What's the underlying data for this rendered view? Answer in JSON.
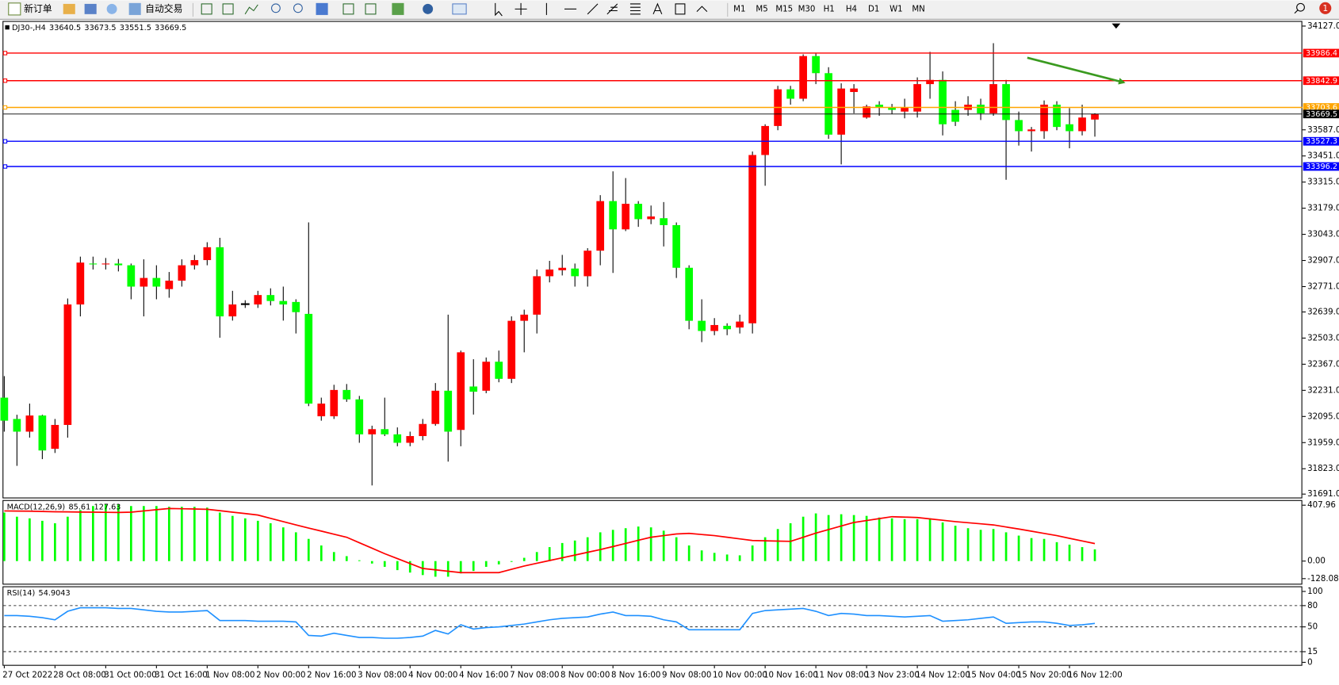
{
  "toolbar": {
    "new_order": "新订单",
    "auto_trading": "自动交易",
    "timeframes": [
      "M1",
      "M5",
      "M15",
      "M30",
      "H1",
      "H4",
      "D1",
      "W1",
      "MN"
    ],
    "badge": "1"
  },
  "chart_data": [
    {
      "type": "candlestick",
      "title": "DJ30-,H4",
      "up_color": "#ff0000",
      "down_color": "#00ff00",
      "wick_color": "#000000",
      "categories": [
        "27 Oct 2022",
        null,
        null,
        null,
        "28 Oct 08:00",
        null,
        null,
        null,
        "31 Oct 00:00",
        null,
        null,
        null,
        "31 Oct 16:00",
        null,
        null,
        null,
        "1 Nov 08:00",
        null,
        null,
        null,
        "2 Nov 00:00",
        null,
        null,
        null,
        "2 Nov 16:00",
        null,
        null,
        null,
        "3 Nov 08:00",
        null,
        null,
        null,
        "4 Nov 00:00",
        null,
        null,
        null,
        "4 Nov 16:00",
        null,
        null,
        null,
        "7 Nov 08:00",
        null,
        null,
        null,
        "8 Nov 00:00",
        null,
        null,
        null,
        "8 Nov 16:00",
        null,
        null,
        null,
        "9 Nov 08:00",
        null,
        null,
        null,
        "10 Nov 00:00",
        null,
        null,
        null,
        "10 Nov 16:00",
        null,
        null,
        null,
        "11 Nov 08:00",
        null,
        null,
        null,
        "13 Nov 23:00",
        null,
        null,
        null,
        "14 Nov 12:00",
        null,
        null,
        null,
        "15 Nov 04:00",
        null,
        null,
        null,
        "15 Nov 20:00",
        null,
        null,
        null,
        "16 Nov 12:00",
        null,
        null
      ],
      "open": [
        32193,
        32082,
        32016,
        32100,
        31927,
        32051,
        32678,
        32891,
        32887,
        32891,
        32882,
        32771,
        32816,
        32758,
        32802,
        32882,
        32909,
        32976,
        32616,
        32682,
        32678,
        32727,
        32696,
        32691,
        32629,
        32096,
        32096,
        32233,
        32184,
        32002,
        32029,
        32002,
        31958,
        31993,
        32056,
        32229,
        32025,
        32251,
        32229,
        32380,
        32291,
        32593,
        32625,
        32825,
        32856,
        32865,
        32825,
        32958,
        33216,
        33069,
        33202,
        33122,
        33127,
        33091,
        32869,
        32593,
        32540,
        32567,
        32558,
        32580,
        33456,
        33607,
        33798,
        33749,
        33971,
        33882,
        33562,
        33784,
        33651,
        33718,
        33705,
        33682,
        33682,
        33825,
        33847,
        33691,
        33691,
        33718,
        33673,
        33825,
        33638,
        33580,
        33580,
        33718,
        33616,
        33580,
        33640.5
      ],
      "high": [
        32305,
        32104,
        32162,
        32104,
        32082,
        32709,
        32927,
        32927,
        32920,
        32915,
        32891,
        32913,
        32882,
        32847,
        32913,
        32936,
        33002,
        33025,
        32749,
        32700,
        32749,
        32762,
        32771,
        32705,
        33105,
        32193,
        32260,
        32264,
        32202,
        32047,
        32193,
        32038,
        32016,
        32082,
        32269,
        32625,
        32438,
        32393,
        32402,
        32438,
        32616,
        32651,
        32860,
        32905,
        32936,
        32891,
        32971,
        33247,
        33371,
        33336,
        33216,
        33193,
        33211,
        33105,
        32882,
        32705,
        32607,
        32580,
        32625,
        33474,
        33616,
        33816,
        33816,
        33980,
        33984,
        33913,
        33829,
        33825,
        33718,
        33736,
        33722,
        33749,
        33860,
        33993,
        33891,
        33736,
        33762,
        33749,
        34038,
        33847,
        33682,
        33602,
        33740,
        33736,
        33700,
        33718,
        33673.5
      ],
      "low": [
        32016,
        31838,
        31985,
        31873,
        31905,
        31985,
        32616,
        32860,
        32860,
        32850,
        32705,
        32616,
        32705,
        32713,
        32771,
        32860,
        32882,
        32505,
        32594,
        32660,
        32660,
        32673,
        32594,
        32527,
        32149,
        32073,
        32082,
        32171,
        31958,
        31736,
        31993,
        31940,
        31940,
        31971,
        32047,
        31860,
        31940,
        32105,
        32216,
        32273,
        32269,
        32429,
        32527,
        32793,
        32829,
        32771,
        32771,
        32882,
        32842,
        33060,
        33082,
        33096,
        32980,
        32816,
        32549,
        32482,
        32518,
        32518,
        32527,
        32527,
        33296,
        33585,
        33718,
        33736,
        33825,
        33540,
        33407,
        33673,
        33645,
        33660,
        33669,
        33647,
        33651,
        33749,
        33558,
        33607,
        33660,
        33638,
        33660,
        33327,
        33505,
        33474,
        33540,
        33585,
        33491,
        33558,
        33551.5
      ],
      "close": [
        32073,
        32016,
        32100,
        31918,
        32051,
        32678,
        32896,
        32887,
        32891,
        32882,
        32771,
        32816,
        32771,
        32802,
        32882,
        32909,
        32976,
        32616,
        32678,
        32682,
        32727,
        32696,
        32678,
        32638,
        32162,
        32162,
        32233,
        32184,
        32002,
        32029,
        32002,
        31958,
        31993,
        32056,
        32229,
        32016,
        32429,
        32224,
        32380,
        32291,
        32593,
        32625,
        32825,
        32860,
        32869,
        32825,
        32958,
        33216,
        33069,
        33202,
        33122,
        33136,
        33091,
        32869,
        32593,
        32540,
        32571,
        32549,
        32589,
        33456,
        33607,
        33798,
        33749,
        33971,
        33882,
        33562,
        33802,
        33802,
        33709,
        33705,
        33691,
        33705,
        33825,
        33847,
        33616,
        33629,
        33718,
        33673,
        33825,
        33638,
        33580,
        33589,
        33718,
        33602,
        33580,
        33651,
        33669.5
      ],
      "ylim": [
        31691,
        34127
      ],
      "yticks": [
        {
          "value": 34127,
          "label": "34127.0"
        },
        {
          "value": 33587,
          "label": "33587.0"
        },
        {
          "value": 33451,
          "label": "33451.0"
        },
        {
          "value": 33315,
          "label": "33315.0"
        },
        {
          "value": 33179,
          "label": "33179.0"
        },
        {
          "value": 33043,
          "label": "33043.0"
        },
        {
          "value": 32907,
          "label": "32907.0"
        },
        {
          "value": 32771,
          "label": "32771.0"
        },
        {
          "value": 32639,
          "label": "32639.0"
        },
        {
          "value": 32503,
          "label": "32503.0"
        },
        {
          "value": 32367,
          "label": "32367.0"
        },
        {
          "value": 32231,
          "label": "32231.0"
        },
        {
          "value": 32095,
          "label": "32095.0"
        },
        {
          "value": 31959,
          "label": "31959.0"
        },
        {
          "value": 31823,
          "label": "31823.0"
        },
        {
          "value": 31691,
          "label": "31691.0"
        }
      ],
      "levels": [
        {
          "value": 33986.4,
          "color": "#ff0000"
        },
        {
          "value": 33842.9,
          "color": "#ff0000"
        },
        {
          "value": 33703.6,
          "color": "#ffa500"
        },
        {
          "value": 33527.3,
          "color": "#0000ff"
        },
        {
          "value": 33396.2,
          "color": "#0000ff"
        }
      ],
      "current_price_color": "#000000"
    },
    {
      "type": "macd",
      "title": "MACD(12,26,9)",
      "series": [
        {
          "style": "histogram",
          "color": "#00ff00",
          "values": [
            354,
            324,
            312,
            294,
            276,
            324,
            372,
            402,
            414,
            414,
            402,
            402,
            402,
            396,
            396,
            396,
            390,
            354,
            330,
            312,
            294,
            276,
            246,
            210,
            162,
            114,
            66,
            36,
            6,
            -18,
            -42,
            -66,
            -84,
            -102,
            -114,
            -114,
            -90,
            -72,
            -42,
            -24,
            -6,
            24,
            66,
            102,
            132,
            150,
            174,
            210,
            228,
            240,
            252,
            246,
            222,
            174,
            114,
            78,
            60,
            48,
            42,
            114,
            174,
            234,
            276,
            324,
            348,
            336,
            342,
            336,
            330,
            318,
            312,
            306,
            306,
            312,
            282,
            258,
            240,
            228,
            234,
            210,
            186,
            168,
            162,
            138,
            120,
            102,
            85.61
          ]
        },
        {
          "style": "line",
          "color": "#ff0000",
          "values": [
            366,
            365,
            364,
            362,
            360,
            359,
            358,
            357,
            356,
            355,
            357,
            366,
            375,
            384,
            382,
            380,
            378,
            368,
            357,
            347,
            336,
            312,
            288,
            264,
            241,
            219,
            196,
            174,
            134,
            94,
            54,
            18,
            -18,
            -54,
            -64,
            -74,
            -84,
            -84,
            -84,
            -84,
            -60,
            -36,
            -16,
            4,
            24,
            44,
            64,
            84,
            106,
            129,
            152,
            174,
            186,
            198,
            202,
            194,
            186,
            174,
            162,
            150,
            148,
            146,
            144,
            174,
            204,
            230,
            256,
            282,
            296,
            310,
            324,
            321,
            318,
            308,
            298,
            288,
            280,
            272,
            264,
            249,
            234,
            218,
            202,
            186,
            166,
            147,
            127.63
          ]
        }
      ],
      "ylim": [
        -128.08,
        407.96
      ],
      "yticks": [
        407.96,
        {
          "value": 0,
          "label": "0.00"
        },
        -128.08
      ]
    },
    {
      "type": "rsi",
      "title": "RSI(14)",
      "color": "#1e90ff",
      "values": [
        66,
        66,
        65,
        63,
        60,
        72,
        77,
        77,
        77,
        76,
        76,
        74,
        72,
        71,
        71,
        72,
        73,
        59,
        59,
        59,
        58,
        58,
        58,
        57,
        38,
        37,
        41,
        38,
        35,
        35,
        34,
        34,
        35,
        37,
        45,
        40,
        53,
        47,
        49,
        50,
        52,
        54,
        57,
        60,
        62,
        63,
        64,
        68,
        71,
        66,
        66,
        65,
        60,
        57,
        46,
        46,
        46,
        46,
        46,
        69,
        73,
        74,
        75,
        76,
        72,
        66,
        69,
        68,
        66,
        66,
        65,
        64,
        65,
        66,
        58,
        59,
        60,
        62,
        64,
        55,
        56,
        57,
        57,
        55,
        52,
        53,
        54.9043
      ],
      "ylim": [
        0,
        100
      ],
      "yticks": [
        100,
        80,
        50,
        15,
        0
      ],
      "levels": [
        80,
        50,
        15
      ]
    }
  ]
}
